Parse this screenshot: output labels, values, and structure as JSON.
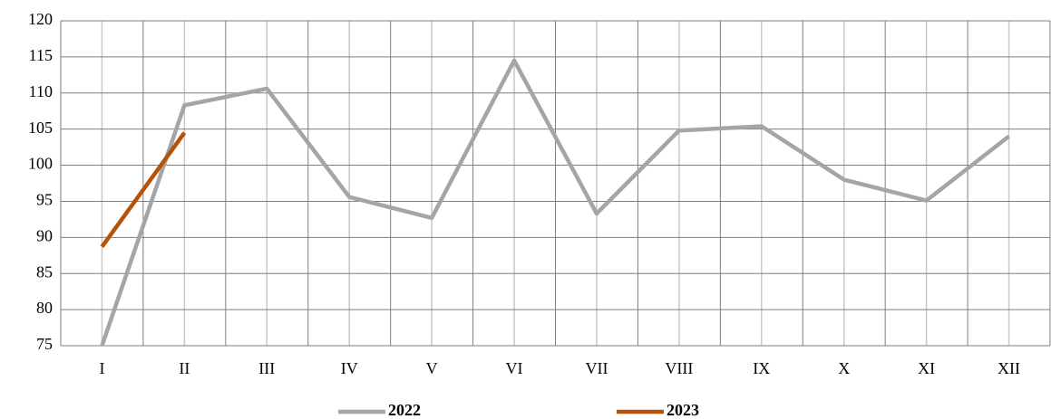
{
  "chart_data": {
    "type": "line",
    "categories": [
      "I",
      "II",
      "III",
      "IV",
      "V",
      "VI",
      "VII",
      "VIII",
      "IX",
      "X",
      "XI",
      "XII"
    ],
    "series": [
      {
        "name": "2022",
        "color": "#a5a5a5",
        "values": [
          75,
          108.3,
          110.6,
          95.6,
          92.7,
          114.5,
          93.3,
          104.8,
          105.4,
          98,
          95.1,
          104
        ]
      },
      {
        "name": "2023",
        "color": "#b45309",
        "values": [
          88.7,
          104.5,
          null,
          null,
          null,
          null,
          null,
          null,
          null,
          null,
          null,
          null
        ]
      }
    ],
    "ylim": [
      75,
      120
    ],
    "yticks": [
      75,
      80,
      85,
      90,
      95,
      100,
      105,
      110,
      115,
      120
    ],
    "grid": true,
    "legend": "bottom"
  }
}
